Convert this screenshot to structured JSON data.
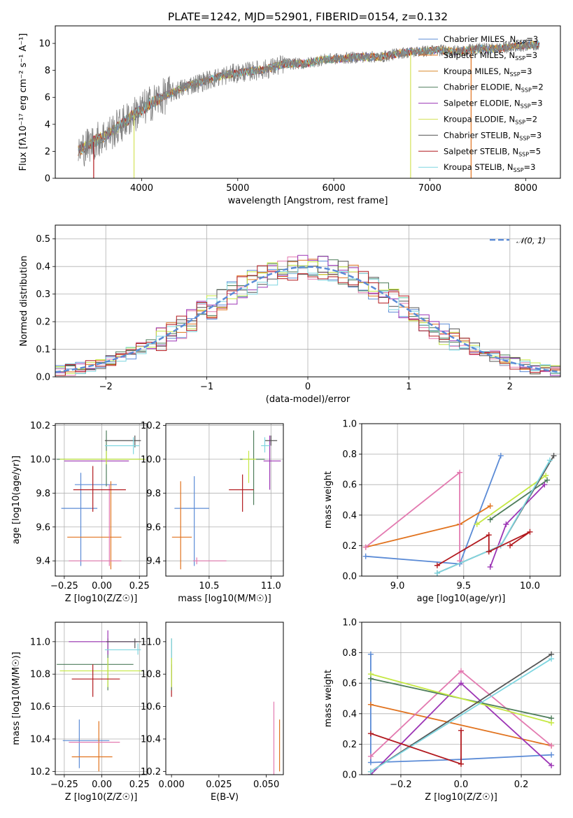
{
  "title": "PLATE=1242, MJD=52901, FIBERID=0154, z=0.132",
  "colors": {
    "miles_chabrier": "#5b8bd6",
    "miles_salpeter": "#e1731f",
    "miles_kroupa": "#d98a2b",
    "elodie_chabrier": "#4e7d5b",
    "elodie_salpeter": "#9c35b5",
    "elodie_kroupa": "#d4e25a",
    "stelib_chabrier": "#555555",
    "stelib_salpeter": "#b2191e",
    "stelib_kroupa": "#7fd6e0",
    "pink": "#e37ab0",
    "lime": "#c5e843",
    "data_gray": "#808080",
    "normal_curve": "#5b8bd6"
  },
  "chart_data": [
    {
      "id": "spectrum",
      "type": "line",
      "xlabel": "wavelength [Angstrom, rest frame]",
      "ylabel": "Flux [fλ10⁻¹⁷ erg cm⁻² s⁻¹ A⁻¹]",
      "xlim": [
        3100,
        8360
      ],
      "ylim": [
        0,
        11.3
      ],
      "xticks": [
        4000,
        5000,
        6000,
        7000,
        8000
      ],
      "yticks": [
        0,
        2,
        4,
        6,
        8,
        10
      ],
      "legend_position": "right",
      "continuum": {
        "x": [
          3340,
          3500,
          3700,
          3900,
          4100,
          4300,
          4500,
          4700,
          4900,
          5100,
          5300,
          5500,
          5700,
          5900,
          6100,
          6300,
          6500,
          6700,
          6900,
          7100,
          7300,
          7500,
          7700,
          7900,
          8100
        ],
        "y": [
          2.0,
          2.7,
          3.5,
          4.6,
          5.6,
          6.3,
          6.9,
          7.3,
          7.7,
          7.9,
          8.1,
          8.5,
          8.5,
          8.8,
          8.9,
          9.0,
          9.0,
          9.3,
          9.4,
          9.5,
          9.4,
          9.6,
          9.6,
          9.8,
          9.9
        ]
      },
      "series": [
        {
          "name": "Chabrier MILES",
          "nssp": "3",
          "color": "miles_chabrier"
        },
        {
          "name": "Salpeter MILES",
          "nssp": "3",
          "color": "miles_salpeter"
        },
        {
          "name": "Kroupa MILES",
          "nssp": "3",
          "color": "miles_kroupa"
        },
        {
          "name": "Chabrier ELODIE",
          "nssp": "2",
          "color": "elodie_chabrier"
        },
        {
          "name": "Salpeter ELODIE",
          "nssp": "3",
          "color": "elodie_salpeter"
        },
        {
          "name": "Kroupa ELODIE",
          "nssp": "2",
          "color": "elodie_kroupa"
        },
        {
          "name": "Chabrier STELIB",
          "nssp": "3",
          "color": "stelib_chabrier"
        },
        {
          "name": "Salpeter STELIB",
          "nssp": "5",
          "color": "stelib_salpeter"
        },
        {
          "name": "Kroupa STELIB",
          "nssp": "3",
          "color": "stelib_kroupa"
        }
      ]
    },
    {
      "id": "residuals",
      "type": "histogram",
      "xlabel": "(data-model)/error",
      "ylabel": "Normed distribution",
      "xlim": [
        -2.5,
        2.5
      ],
      "ylim": [
        0,
        0.55
      ],
      "xticks": [
        -2,
        -1,
        0,
        1,
        2
      ],
      "yticks": [
        0.0,
        0.1,
        0.2,
        0.3,
        0.4,
        0.5
      ],
      "legend": "𝒩(0, 1)",
      "bin_width": 0.1
    },
    {
      "id": "age_vs_Z",
      "type": "scatter",
      "xlabel": "Z [log10(Z/Z☉)]",
      "ylabel": "age  [log10(age/yr)]",
      "xlim": [
        -0.31,
        0.3
      ],
      "ylim": [
        9.31,
        10.21
      ],
      "xticks": [
        -0.25,
        0.0,
        0.25
      ],
      "yticks": [
        9.4,
        9.6,
        9.8,
        10.0,
        10.2
      ],
      "points": [
        {
          "c": "miles_chabrier",
          "x": -0.14,
          "xl": -0.18,
          "xr": 0.1,
          "y": 9.85,
          "yl": 9.37,
          "yh": 9.92
        },
        {
          "c": "miles_chabrier",
          "x": -0.15,
          "xl": -0.27,
          "xr": -0.03,
          "y": 9.71,
          "yl": 9.71,
          "yh": 9.71
        },
        {
          "c": "miles_salpeter",
          "x": -0.05,
          "xl": -0.23,
          "xr": 0.13,
          "y": 9.54,
          "yl": 9.54,
          "yh": 9.54
        },
        {
          "c": "miles_salpeter",
          "x": 0.06,
          "xl": 0.06,
          "xr": 0.06,
          "y": 9.6,
          "yl": 9.35,
          "yh": 9.87
        },
        {
          "c": "pink",
          "x": -0.13,
          "xl": -0.22,
          "xr": 0.13,
          "y": 9.4,
          "yl": 9.4,
          "yh": 9.4
        },
        {
          "c": "pink",
          "x": 0.05,
          "xl": 0.05,
          "xr": 0.05,
          "y": 9.6,
          "yl": 9.37,
          "yh": 9.85
        },
        {
          "c": "elodie_chabrier",
          "x": 0.03,
          "xl": -0.3,
          "xr": 0.27,
          "y": 10.0,
          "yl": 9.84,
          "yh": 10.17
        },
        {
          "c": "elodie_salpeter",
          "x": 0.04,
          "xl": -0.25,
          "xr": 0.18,
          "y": 9.99,
          "yl": 9.99,
          "yh": 9.99
        },
        {
          "c": "lime",
          "x": 0.03,
          "xl": -0.28,
          "xr": 0.29,
          "y": 10.0,
          "yl": 9.97,
          "yh": 10.05
        },
        {
          "c": "stelib_chabrier",
          "x": 0.22,
          "xl": 0.02,
          "xr": 0.26,
          "y": 10.11,
          "yl": 10.07,
          "yh": 10.14
        },
        {
          "c": "stelib_kroupa",
          "x": 0.21,
          "xl": 0.02,
          "xr": 0.25,
          "y": 10.08,
          "yl": 10.03,
          "yh": 10.13
        },
        {
          "c": "stelib_salpeter",
          "x": -0.06,
          "xl": -0.19,
          "xr": 0.16,
          "y": 9.82,
          "yl": 9.69,
          "yh": 9.96
        }
      ]
    },
    {
      "id": "age_vs_mass",
      "type": "scatter",
      "xlabel": "mass [log10(M/M☉)]",
      "xlim": [
        10.15,
        11.1
      ],
      "ylim": [
        9.31,
        10.21
      ],
      "xticks": [
        10.5,
        11.0
      ],
      "yticks": [
        9.4,
        9.6,
        9.8,
        10.0,
        10.2
      ],
      "points": [
        {
          "c": "miles_chabrier",
          "x": 10.38,
          "xl": 10.22,
          "xr": 10.5,
          "y": 9.71,
          "yl": 9.37,
          "yh": 9.9
        },
        {
          "c": "miles_salpeter",
          "x": 10.27,
          "xl": 10.2,
          "xr": 10.36,
          "y": 9.54,
          "yl": 9.35,
          "yh": 9.87
        },
        {
          "c": "pink",
          "x": 10.4,
          "xl": 10.37,
          "xr": 10.64,
          "y": 9.4,
          "yl": 9.38,
          "yh": 9.42
        },
        {
          "c": "elodie_chabrier",
          "x": 10.86,
          "xl": 10.75,
          "xr": 10.95,
          "y": 10.0,
          "yl": 9.73,
          "yh": 10.17
        },
        {
          "c": "elodie_salpeter",
          "x": 10.99,
          "xl": 10.94,
          "xr": 11.08,
          "y": 9.99,
          "yl": 9.82,
          "yh": 10.14
        },
        {
          "c": "lime",
          "x": 10.82,
          "xl": 10.77,
          "xr": 10.88,
          "y": 10.0,
          "yl": 9.86,
          "yh": 10.05
        },
        {
          "c": "stelib_chabrier",
          "x": 11.0,
          "xl": 10.95,
          "xr": 11.05,
          "y": 10.11,
          "yl": 10.08,
          "yh": 10.14
        },
        {
          "c": "stelib_kroupa",
          "x": 10.95,
          "xl": 10.92,
          "xr": 10.99,
          "y": 10.08,
          "yl": 10.04,
          "yh": 10.13
        },
        {
          "c": "stelib_salpeter",
          "x": 10.77,
          "xl": 10.66,
          "xr": 10.86,
          "y": 9.82,
          "yl": 9.69,
          "yh": 9.91
        }
      ]
    },
    {
      "id": "weight_vs_age",
      "type": "line",
      "xlabel": "age  [log10(age/yr)]",
      "ylabel": "mass weight",
      "xlim": [
        8.73,
        10.23
      ],
      "ylim": [
        0,
        1.0
      ],
      "xticks": [
        9.0,
        9.5,
        10.0
      ],
      "yticks": [
        0.0,
        0.2,
        0.4,
        0.6,
        0.8,
        1.0
      ],
      "series": [
        {
          "c": "miles_chabrier",
          "x": [
            8.76,
            9.47,
            9.78
          ],
          "y": [
            0.13,
            0.08,
            0.79
          ]
        },
        {
          "c": "miles_salpeter",
          "x": [
            8.76,
            9.47,
            9.7
          ],
          "y": [
            0.19,
            0.34,
            0.46
          ]
        },
        {
          "c": "pink",
          "x": [
            8.76,
            9.47,
            9.47
          ],
          "y": [
            0.19,
            0.68,
            0.1
          ]
        },
        {
          "c": "elodie_chabrier",
          "x": [
            9.7,
            10.13
          ],
          "y": [
            0.37,
            0.63
          ]
        },
        {
          "c": "elodie_salpeter",
          "x": [
            9.7,
            9.82,
            10.11
          ],
          "y": [
            0.06,
            0.34,
            0.6
          ]
        },
        {
          "c": "lime",
          "x": [
            9.6,
            10.12
          ],
          "y": [
            0.34,
            0.66
          ]
        },
        {
          "c": "stelib_chabrier",
          "x": [
            9.3,
            9.78,
            10.18
          ],
          "y": [
            0.02,
            0.2,
            0.79
          ]
        },
        {
          "c": "stelib_kroupa",
          "x": [
            9.3,
            9.78,
            10.15
          ],
          "y": [
            0.02,
            0.2,
            0.76
          ]
        },
        {
          "c": "stelib_salpeter",
          "x": [
            9.3,
            9.69,
            9.69,
            10.0,
            9.85
          ],
          "y": [
            0.07,
            0.27,
            0.16,
            0.29,
            0.2
          ]
        }
      ]
    },
    {
      "id": "mass_vs_Z",
      "type": "scatter",
      "xlabel": "Z [log10(Z/Z☉)]",
      "ylabel": "mass [log10(M/M☉)]",
      "xlim": [
        -0.31,
        0.3
      ],
      "ylim": [
        10.18,
        11.12
      ],
      "xticks": [
        -0.25,
        0.0,
        0.25
      ],
      "yticks": [
        10.2,
        10.4,
        10.6,
        10.8,
        11.0
      ],
      "points": [
        {
          "c": "miles_chabrier",
          "x": -0.15,
          "xl": -0.26,
          "xr": 0.05,
          "y": 10.39,
          "yl": 10.22,
          "yh": 10.52
        },
        {
          "c": "miles_salpeter",
          "x": -0.05,
          "xl": -0.2,
          "xr": 0.07,
          "y": 10.29,
          "yl": 10.29,
          "yh": 10.29
        },
        {
          "c": "miles_salpeter",
          "x": -0.02,
          "xl": -0.02,
          "xr": -0.02,
          "y": 10.37,
          "yl": 10.2,
          "yh": 10.51
        },
        {
          "c": "pink",
          "x": -0.1,
          "xl": -0.22,
          "xr": 0.12,
          "y": 10.38,
          "yl": 10.38,
          "yh": 10.38
        },
        {
          "c": "elodie_chabrier",
          "x": 0.04,
          "xl": -0.3,
          "xr": 0.21,
          "y": 10.86,
          "yl": 10.7,
          "yh": 11.02
        },
        {
          "c": "elodie_salpeter",
          "x": 0.04,
          "xl": -0.22,
          "xr": 0.24,
          "y": 11.0,
          "yl": 10.92,
          "yh": 11.07
        },
        {
          "c": "lime",
          "x": 0.04,
          "xl": -0.28,
          "xr": 0.28,
          "y": 10.82,
          "yl": 10.72,
          "yh": 10.9
        },
        {
          "c": "stelib_chabrier",
          "x": 0.22,
          "xl": 0.03,
          "xr": 0.26,
          "y": 11.0,
          "yl": 10.96,
          "yh": 11.02
        },
        {
          "c": "stelib_kroupa",
          "x": 0.24,
          "xl": 0.02,
          "xr": 0.26,
          "y": 10.95,
          "yl": 10.92,
          "yh": 10.99
        },
        {
          "c": "stelib_salpeter",
          "x": -0.06,
          "xl": -0.2,
          "xr": 0.12,
          "y": 10.77,
          "yl": 10.66,
          "yh": 10.86
        }
      ]
    },
    {
      "id": "mass_vs_ebv",
      "type": "scatter",
      "xlabel": "E(B-V)",
      "xlim": [
        -0.003,
        0.059
      ],
      "ylim": [
        10.18,
        11.12
      ],
      "xticks": [
        0.0,
        0.025,
        0.05
      ],
      "xticklabels": [
        "0.000",
        "0.025",
        "0.050"
      ],
      "yticks": [
        10.2,
        10.4,
        10.6,
        10.8,
        11.0
      ],
      "points": [
        {
          "c": "stelib_salpeter",
          "x": 0.0,
          "xl": 0.0,
          "xr": 0.0,
          "y": 10.77,
          "yl": 10.66,
          "yh": 10.86
        },
        {
          "c": "elodie_chabrier",
          "x": 0.0,
          "xl": 0.0,
          "xr": 0.0,
          "y": 10.86,
          "yl": 10.7,
          "yh": 11.02
        },
        {
          "c": "lime",
          "x": 0.0,
          "xl": 0.0,
          "xr": 0.0,
          "y": 10.82,
          "yl": 10.72,
          "yh": 10.9
        },
        {
          "c": "stelib_kroupa",
          "x": 0.0,
          "xl": 0.0,
          "xr": 0.0,
          "y": 10.95,
          "yl": 10.9,
          "yh": 11.02
        },
        {
          "c": "pink",
          "x": 0.054,
          "xl": 0.054,
          "xr": 0.054,
          "y": 10.38,
          "yl": 10.18,
          "yh": 10.63
        },
        {
          "c": "miles_salpeter",
          "x": 0.057,
          "xl": 0.057,
          "xr": 0.057,
          "y": 10.29,
          "yl": 10.2,
          "yh": 10.52
        }
      ]
    },
    {
      "id": "weight_vs_Z",
      "type": "line",
      "xlabel": "Z [log10(Z/Z☉)]",
      "ylabel": "mass weight",
      "xlim": [
        -0.33,
        0.33
      ],
      "ylim": [
        0,
        1.0
      ],
      "xticks": [
        -0.2,
        0.0,
        0.2
      ],
      "yticks": [
        0.0,
        0.2,
        0.4,
        0.6,
        0.8,
        1.0
      ],
      "series": [
        {
          "c": "miles_chabrier",
          "x": [
            -0.3,
            -0.3,
            0.0,
            0.3
          ],
          "y": [
            0.79,
            0.08,
            0.1,
            0.13
          ]
        },
        {
          "c": "miles_salpeter",
          "x": [
            -0.3,
            0.3
          ],
          "y": [
            0.46,
            0.19
          ]
        },
        {
          "c": "pink",
          "x": [
            -0.3,
            0.0,
            0.3
          ],
          "y": [
            0.12,
            0.68,
            0.19
          ]
        },
        {
          "c": "elodie_salpeter",
          "x": [
            -0.3,
            0.0,
            0.3
          ],
          "y": [
            0.0,
            0.6,
            0.06
          ]
        },
        {
          "c": "elodie_chabrier",
          "x": [
            -0.3,
            0.3
          ],
          "y": [
            0.63,
            0.37
          ]
        },
        {
          "c": "lime",
          "x": [
            -0.3,
            0.3
          ],
          "y": [
            0.66,
            0.34
          ]
        },
        {
          "c": "stelib_chabrier",
          "x": [
            -0.3,
            0.3
          ],
          "y": [
            0.02,
            0.79
          ]
        },
        {
          "c": "stelib_kroupa",
          "x": [
            -0.3,
            0.3
          ],
          "y": [
            0.02,
            0.76
          ]
        },
        {
          "c": "stelib_salpeter",
          "x": [
            -0.3,
            0.0,
            0.0
          ],
          "y": [
            0.27,
            0.07,
            0.29
          ]
        }
      ]
    }
  ]
}
